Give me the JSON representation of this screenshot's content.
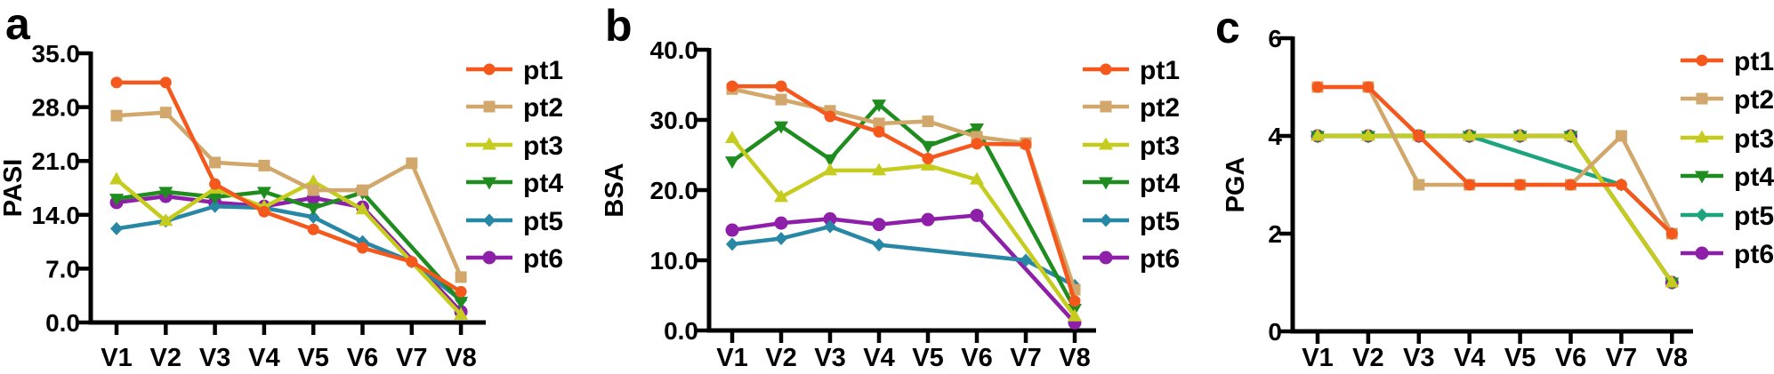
{
  "chart_data": [
    {
      "panel_letter": "a",
      "type": "line",
      "title": "",
      "ylabel": "PASI",
      "xlabel": "",
      "ylim": [
        0,
        35
      ],
      "ytick_values": [
        0,
        7,
        14,
        21,
        28,
        35
      ],
      "ytick_labels": [
        "0.0",
        "7.0",
        "14.0",
        "21.0",
        "28.0",
        "35.0"
      ],
      "categories": [
        "V1",
        "V2",
        "V3",
        "V4",
        "V5",
        "V6",
        "V7",
        "V8"
      ],
      "legend_position": "right",
      "grid": false,
      "series": [
        {
          "name": "pt1",
          "color": "#F4581C",
          "marker": "circle",
          "values": [
            31.2,
            31.2,
            18.0,
            14.4,
            12.1,
            9.7,
            7.9,
            4.0
          ]
        },
        {
          "name": "pt2",
          "color": "#D2A76B",
          "marker": "square",
          "values": [
            26.9,
            27.3,
            20.8,
            20.4,
            17.2,
            17.2,
            20.7,
            5.9
          ]
        },
        {
          "name": "pt3",
          "color": "#C6CC1E",
          "marker": "triangle-up",
          "values": [
            18.6,
            13.2,
            17.4,
            15.0,
            18.3,
            14.7,
            null,
            1.0
          ]
        },
        {
          "name": "pt4",
          "color": "#1E8C1E",
          "marker": "triangle-down",
          "values": [
            16.1,
            17.0,
            16.3,
            17.0,
            14.9,
            16.9,
            null,
            2.7
          ]
        },
        {
          "name": "pt5",
          "color": "#2787A5",
          "marker": "diamond",
          "values": [
            12.2,
            13.2,
            15.1,
            14.9,
            13.7,
            10.5,
            7.9,
            2.9
          ]
        },
        {
          "name": "pt6",
          "color": "#8E1FA8",
          "marker": "circle-large",
          "values": [
            15.6,
            16.4,
            15.6,
            15.1,
            16.2,
            15.0,
            null,
            1.4
          ]
        }
      ]
    },
    {
      "panel_letter": "b",
      "type": "line",
      "title": "",
      "ylabel": "BSA",
      "xlabel": "",
      "ylim": [
        0,
        40
      ],
      "ytick_values": [
        0,
        10,
        20,
        30,
        40
      ],
      "ytick_labels": [
        "0.0",
        "10.0",
        "20.0",
        "30.0",
        "40.0"
      ],
      "categories": [
        "V1",
        "V2",
        "V3",
        "V4",
        "V5",
        "V6",
        "V7",
        "V8"
      ],
      "legend_position": "right",
      "grid": false,
      "series": [
        {
          "name": "pt1",
          "color": "#F4581C",
          "marker": "circle",
          "values": [
            34.8,
            34.8,
            30.5,
            28.3,
            24.5,
            26.6,
            26.5,
            4.2
          ]
        },
        {
          "name": "pt2",
          "color": "#D2A76B",
          "marker": "square",
          "values": [
            34.4,
            32.9,
            31.3,
            29.5,
            29.8,
            27.6,
            26.7,
            5.8
          ]
        },
        {
          "name": "pt3",
          "color": "#C6CC1E",
          "marker": "triangle-up",
          "values": [
            27.4,
            19.0,
            22.8,
            22.8,
            23.5,
            21.5,
            null,
            2.0
          ]
        },
        {
          "name": "pt4",
          "color": "#1E8C1E",
          "marker": "triangle-down",
          "values": [
            24.1,
            29.1,
            24.4,
            32.2,
            26.3,
            28.8,
            null,
            3.1
          ]
        },
        {
          "name": "pt5",
          "color": "#2787A5",
          "marker": "diamond",
          "values": [
            12.3,
            13.1,
            14.8,
            12.2,
            null,
            null,
            10.0,
            6.4
          ]
        },
        {
          "name": "pt6",
          "color": "#8E1FA8",
          "marker": "circle-large",
          "values": [
            14.3,
            15.3,
            15.9,
            15.1,
            15.8,
            16.4,
            null,
            1.1
          ]
        }
      ]
    },
    {
      "panel_letter": "c",
      "type": "line",
      "title": "",
      "ylabel": "PGA",
      "xlabel": "",
      "ylim": [
        0,
        6
      ],
      "ytick_values": [
        0,
        2,
        4,
        6
      ],
      "ytick_labels": [
        "0",
        "2",
        "4",
        "6"
      ],
      "categories": [
        "V1",
        "V2",
        "V3",
        "V4",
        "V5",
        "V6",
        "V7",
        "V8"
      ],
      "legend_position": "right",
      "grid": false,
      "series": [
        {
          "name": "pt1",
          "color": "#F4581C",
          "marker": "circle",
          "values": [
            5,
            5,
            4,
            3,
            3,
            3,
            3,
            2
          ]
        },
        {
          "name": "pt2",
          "color": "#D2A76B",
          "marker": "square",
          "values": [
            5,
            5,
            3,
            3,
            3,
            3,
            4,
            2
          ]
        },
        {
          "name": "pt3",
          "color": "#C6CC1E",
          "marker": "triangle-up",
          "values": [
            4,
            4,
            4,
            4,
            4,
            4,
            null,
            1
          ]
        },
        {
          "name": "pt4",
          "color": "#1E8C1E",
          "marker": "triangle-down",
          "values": [
            4,
            4,
            4,
            4,
            4,
            4,
            null,
            1
          ]
        },
        {
          "name": "pt5",
          "color": "#1BA47E",
          "marker": "diamond",
          "values": [
            4,
            4,
            4,
            4,
            null,
            null,
            3,
            2
          ]
        },
        {
          "name": "pt6",
          "color": "#8E1FA8",
          "marker": "circle-large",
          "values": [
            4,
            4,
            4,
            4,
            4,
            4,
            null,
            1
          ]
        }
      ]
    }
  ],
  "colors": {
    "axis": "#000000",
    "text": "#000000",
    "background": "#ffffff"
  }
}
